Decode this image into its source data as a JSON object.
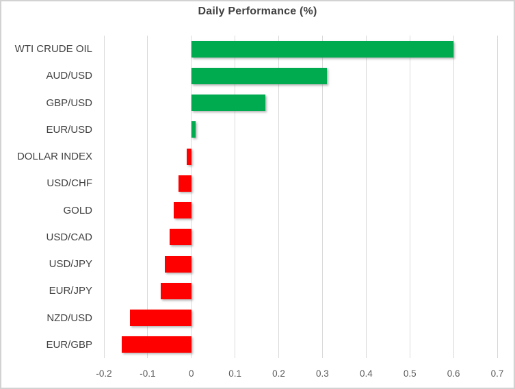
{
  "chart_data": {
    "type": "bar",
    "orientation": "horizontal",
    "title": "Daily Performance (%)",
    "categories": [
      "WTI CRUDE OIL",
      "AUD/USD",
      "GBP/USD",
      "EUR/USD",
      "DOLLAR INDEX",
      "USD/CHF",
      "GOLD",
      "USD/CAD",
      "USD/JPY",
      "EUR/JPY",
      "NZD/USD",
      "EUR/GBP"
    ],
    "values": [
      0.6,
      0.31,
      0.17,
      0.01,
      -0.01,
      -0.03,
      -0.04,
      -0.05,
      -0.06,
      -0.07,
      -0.14,
      -0.16
    ],
    "xlabel": "",
    "ylabel": "",
    "xlim": [
      -0.2,
      0.7
    ],
    "xticks": [
      {
        "value": -0.2,
        "label": "-0.2"
      },
      {
        "value": -0.1,
        "label": "-0.1"
      },
      {
        "value": 0,
        "label": "0"
      },
      {
        "value": 0.1,
        "label": "0.1"
      },
      {
        "value": 0.2,
        "label": "0.2"
      },
      {
        "value": 0.3,
        "label": "0.3"
      },
      {
        "value": 0.4,
        "label": "0.4"
      },
      {
        "value": 0.5,
        "label": "0.5"
      },
      {
        "value": 0.6,
        "label": "0.6"
      },
      {
        "value": 0.7,
        "label": "0.7"
      }
    ],
    "grid": true,
    "legend": false,
    "colors": {
      "positive": "#00AB50",
      "negative": "#FF0000",
      "gridline": "#D9D9D9",
      "title_text": "#404040",
      "category_text": "#404040",
      "tick_text": "#595959",
      "frame": "#D2D2D2"
    }
  }
}
